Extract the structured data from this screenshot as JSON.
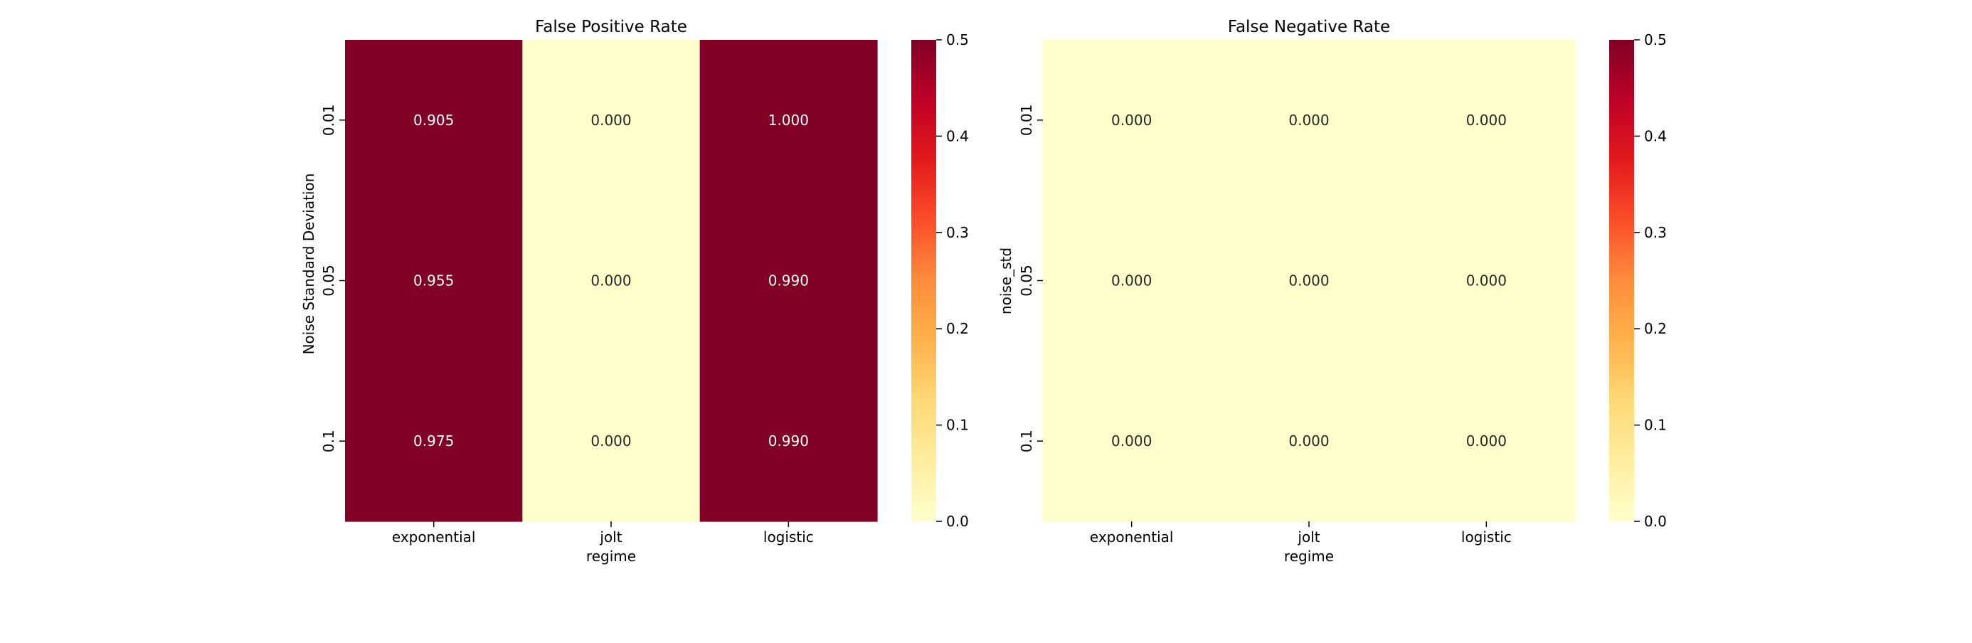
{
  "chart_data": [
    {
      "type": "heatmap",
      "title": "False Positive Rate",
      "xlabel": "regime",
      "ylabel": "Noise Standard Deviation",
      "x_categories": [
        "exponential",
        "jolt",
        "logistic"
      ],
      "y_categories": [
        "0.01",
        "0.05",
        "0.1"
      ],
      "values": [
        [
          0.905,
          0.0,
          1.0
        ],
        [
          0.955,
          0.0,
          0.99
        ],
        [
          0.975,
          0.0,
          0.99
        ]
      ],
      "value_format": "3 decimals",
      "colormap": "YlOrRd",
      "clim": [
        0,
        0.5
      ],
      "colorbar_ticks": [
        "0.0",
        "0.1",
        "0.2",
        "0.3",
        "0.4",
        "0.5"
      ],
      "colors": {
        "low": "#ffffcc",
        "high": "#800026"
      }
    },
    {
      "type": "heatmap",
      "title": "False Negative Rate",
      "xlabel": "regime",
      "ylabel": "noise_std",
      "x_categories": [
        "exponential",
        "jolt",
        "logistic"
      ],
      "y_categories": [
        "0.01",
        "0.05",
        "0.1"
      ],
      "values": [
        [
          0.0,
          0.0,
          0.0
        ],
        [
          0.0,
          0.0,
          0.0
        ],
        [
          0.0,
          0.0,
          0.0
        ]
      ],
      "value_format": "3 decimals",
      "colormap": "YlOrRd",
      "clim": [
        0,
        0.5
      ],
      "colorbar_ticks": [
        "0.0",
        "0.1",
        "0.2",
        "0.3",
        "0.4",
        "0.5"
      ],
      "colors": {
        "low": "#ffffcc",
        "high": "#800026"
      }
    }
  ]
}
